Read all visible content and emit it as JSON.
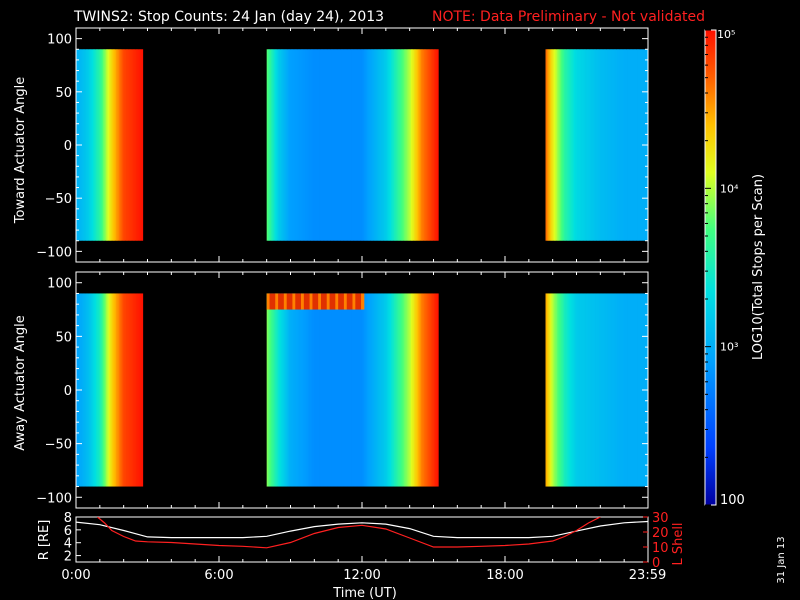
{
  "header": {
    "title": "TWINS2: Stop Counts: 24 Jan (day  24), 2013",
    "note": "NOTE: Data Preliminary - Not validated",
    "note_color": "#ff2020"
  },
  "side_date": "31 Jan 13",
  "colorbar": {
    "label": "LOG10(Total Stops per Scan)",
    "tick_labels": [
      "100",
      "10^3",
      "10^4",
      "10^5"
    ],
    "tick_display": [
      "100",
      "10³",
      "10⁴",
      "10⁵"
    ],
    "range": [
      100,
      100000
    ],
    "scale": "log"
  },
  "chart_data": [
    {
      "type": "heatmap",
      "panel": "toward",
      "ylabel": "Toward Actuator Angle",
      "ylim": [
        -110,
        110
      ],
      "yticks": [
        -100,
        -50,
        0,
        50,
        100
      ],
      "xlim": [
        0,
        24
      ],
      "angle_range": [
        -90,
        90
      ],
      "data_intervals_hours": [
        [
          0,
          2.8
        ],
        [
          8.0,
          15.2
        ],
        [
          19.7,
          24.0
        ]
      ],
      "profile_hours": [
        0,
        0.5,
        1.0,
        1.5,
        2.0,
        2.8,
        8.0,
        8.5,
        9.0,
        10.0,
        11.0,
        12.0,
        13.0,
        14.0,
        14.5,
        15.2,
        19.7,
        20.0,
        20.5,
        21.0,
        22.0,
        23.0,
        24.0
      ],
      "profile_log_counts": [
        3.0,
        3.2,
        3.6,
        4.3,
        4.8,
        5.0,
        3.8,
        3.2,
        2.9,
        2.8,
        2.8,
        2.8,
        3.2,
        4.0,
        4.6,
        5.0,
        4.7,
        4.2,
        3.6,
        3.3,
        3.1,
        3.0,
        3.0
      ]
    },
    {
      "type": "heatmap",
      "panel": "away",
      "ylabel": "Away Actuator Angle",
      "ylim": [
        -110,
        110
      ],
      "yticks": [
        -100,
        -50,
        0,
        50,
        100
      ],
      "xlim": [
        0,
        24
      ],
      "angle_range": [
        -90,
        90
      ],
      "data_intervals_hours": [
        [
          0,
          2.8
        ],
        [
          8.0,
          15.2
        ],
        [
          19.7,
          24.0
        ]
      ],
      "profile_hours": [
        0,
        0.5,
        1.0,
        1.5,
        2.0,
        2.8,
        8.0,
        8.5,
        9.0,
        10.0,
        11.0,
        12.0,
        13.0,
        14.0,
        14.5,
        15.2,
        19.7,
        20.0,
        20.5,
        21.0,
        22.0,
        23.0,
        24.0
      ],
      "profile_log_counts": [
        2.9,
        3.1,
        3.5,
        4.3,
        4.8,
        5.0,
        3.9,
        3.4,
        3.0,
        2.8,
        2.8,
        2.8,
        3.2,
        4.0,
        4.6,
        5.0,
        4.5,
        4.0,
        3.5,
        3.2,
        3.1,
        3.0,
        3.0
      ],
      "hot_band_angles": [
        75,
        90
      ],
      "hot_band_hours": [
        8.0,
        12.0
      ]
    },
    {
      "type": "line",
      "panel": "orbit",
      "ylabel": "R [RE]",
      "ylabel_right": "L Shell",
      "ylim": [
        1,
        8
      ],
      "yticks": [
        2,
        4,
        6,
        8
      ],
      "ylim_right": [
        0,
        30
      ],
      "yticks_right": [
        0,
        10,
        20,
        30
      ],
      "xlim": [
        0,
        24
      ],
      "xlabel": "Time (UT)",
      "xtick_labels": [
        "0:00",
        "6:00",
        "12:00",
        "18:00",
        "23:59"
      ],
      "xtick_hours": [
        0,
        6,
        12,
        18,
        23.98
      ],
      "series": [
        {
          "name": "R [RE]",
          "color": "#ffffff",
          "x": [
            0,
            1,
            2,
            3,
            4,
            5,
            6,
            7,
            8,
            9,
            10,
            11,
            12,
            13,
            14,
            15,
            16,
            17,
            18,
            19,
            20,
            21,
            22,
            23,
            24
          ],
          "y": [
            7.2,
            6.8,
            5.9,
            4.9,
            4.8,
            4.8,
            4.8,
            4.8,
            5.0,
            5.8,
            6.5,
            6.9,
            7.1,
            6.9,
            6.2,
            5.0,
            4.8,
            4.8,
            4.8,
            4.8,
            5.0,
            5.8,
            6.6,
            7.1,
            7.3
          ]
        },
        {
          "name": "L Shell",
          "color": "#ff2020",
          "axis": "right",
          "x": [
            0.9,
            1.2,
            1.5,
            2.0,
            2.5,
            3.0,
            4.0,
            5.0,
            6.0,
            7.0,
            8.0,
            9.0,
            10.0,
            11.0,
            12.0,
            13.0,
            14.0,
            15.0,
            16.0,
            17.0,
            18.0,
            19.0,
            20.0,
            20.5,
            21.0,
            21.5,
            22.0
          ],
          "y": [
            30,
            26,
            21,
            17,
            14,
            13.5,
            13,
            12,
            11,
            10.5,
            9.5,
            13,
            19,
            23,
            24.5,
            22,
            16,
            10,
            10,
            10.5,
            11,
            12,
            14,
            17,
            21,
            26,
            30
          ]
        }
      ]
    }
  ]
}
